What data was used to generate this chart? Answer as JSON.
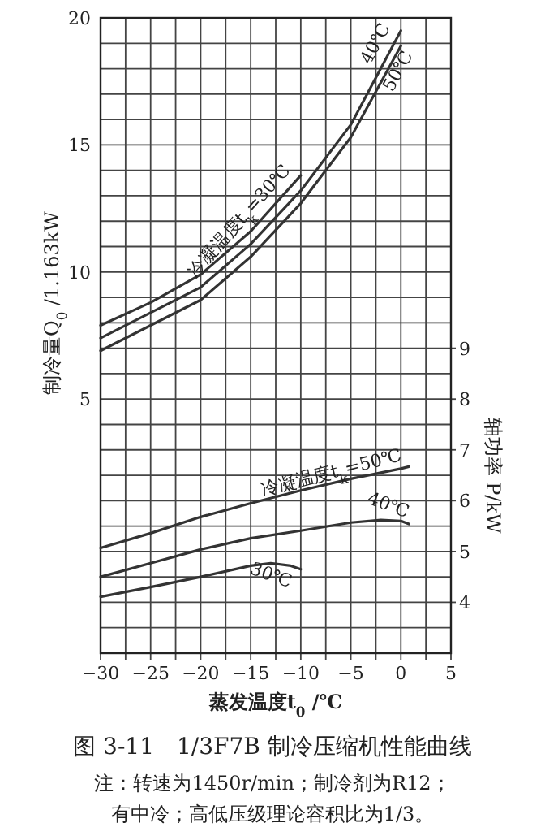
{
  "chart_data": {
    "type": "line",
    "title": "图 3-11　1/3F7B 制冷压缩机性能曲线",
    "annotations": [
      "注：转速为1450r/min；制冷剂为R12；",
      "有中冷；高低压级理论容积比为1/3。"
    ],
    "xlabel": "蒸发温度t$_{0}$ /℃",
    "ylabel": "制冷量Q$_{0}$ /1.163kW",
    "y2label": "轴功率 P/kW",
    "xlim": [
      -30,
      5
    ],
    "xticks": [
      -30,
      {
        "value": -27.5,
        "label": null
      },
      -25,
      {
        "value": -22.5,
        "label": null
      },
      -20,
      {
        "value": -17.5,
        "label": null
      },
      -15,
      {
        "value": -12.5,
        "label": null
      },
      -10,
      {
        "value": -7.5,
        "label": null
      },
      -5,
      {
        "value": -2.5,
        "label": null
      },
      0,
      {
        "value": 2.5,
        "label": null
      },
      5
    ],
    "ylim": [
      -5,
      20
    ],
    "yticks": [
      {
        "value": -5,
        "label": null
      },
      {
        "value": -4,
        "label": null
      },
      {
        "value": -3,
        "label": null
      },
      {
        "value": -2,
        "label": null
      },
      {
        "value": -1,
        "label": null
      },
      {
        "value": 0,
        "label": null
      },
      {
        "value": 1,
        "label": null
      },
      {
        "value": 2,
        "label": null
      },
      {
        "value": 3,
        "label": null
      },
      {
        "value": 4,
        "label": null
      },
      5,
      {
        "value": 6,
        "label": null
      },
      {
        "value": 7,
        "label": null
      },
      {
        "value": 8,
        "label": null
      },
      {
        "value": 9,
        "label": null
      },
      10,
      {
        "value": 11,
        "label": null
      },
      {
        "value": 12,
        "label": null
      },
      {
        "value": 13,
        "label": null
      },
      {
        "value": 14,
        "label": null
      },
      15,
      {
        "value": 16,
        "label": null
      },
      {
        "value": 17,
        "label": null
      },
      {
        "value": 18,
        "label": null
      },
      {
        "value": 19,
        "label": null
      },
      20
    ],
    "y2lim": [
      3,
      15.5
    ],
    "y2ticks": [
      4,
      5,
      6,
      7,
      8,
      9
    ],
    "grid": true,
    "series": [
      {
        "name": "冷凝温度t$_{k}$=30℃",
        "color": "#333333",
        "x": [
          -30,
          -25,
          -20,
          -15,
          -10
        ],
        "values": [
          7.9,
          8.8,
          9.9,
          11.6,
          13.8
        ]
      },
      {
        "name": "40℃",
        "color": "#333333",
        "x": [
          -30,
          -25,
          -20,
          -15,
          -10,
          -5,
          0
        ],
        "values": [
          7.4,
          8.4,
          9.4,
          11.1,
          13.2,
          15.8,
          19.5
        ]
      },
      {
        "name": "50℃",
        "color": "#333333",
        "x": [
          -30,
          -25,
          -20,
          -15,
          -10,
          -5,
          0
        ],
        "values": [
          6.9,
          7.9,
          8.9,
          10.6,
          12.7,
          15.3,
          18.9
        ]
      },
      {
        "name": "冷凝温度t$_{k}$=50℃",
        "color": "#333333",
        "axis": "y2",
        "x": [
          -30,
          -25,
          -20,
          -15,
          -10,
          -5,
          0,
          0.8
        ],
        "values": [
          5.07,
          5.36,
          5.68,
          5.95,
          6.2,
          6.43,
          6.63,
          6.67
        ]
      },
      {
        "name": "40℃",
        "color": "#333333",
        "axis": "y2",
        "x": [
          -30,
          -25,
          -20,
          -15,
          -10,
          -5,
          -2,
          0,
          0.8
        ],
        "values": [
          4.5,
          4.77,
          5.04,
          5.26,
          5.41,
          5.57,
          5.62,
          5.6,
          5.54
        ]
      },
      {
        "name": "30℃",
        "color": "#333333",
        "axis": "y2",
        "x": [
          -30,
          -25,
          -20,
          -15,
          -13,
          -11,
          -10
        ],
        "values": [
          4.11,
          4.3,
          4.5,
          4.72,
          4.77,
          4.72,
          4.65
        ]
      }
    ]
  }
}
